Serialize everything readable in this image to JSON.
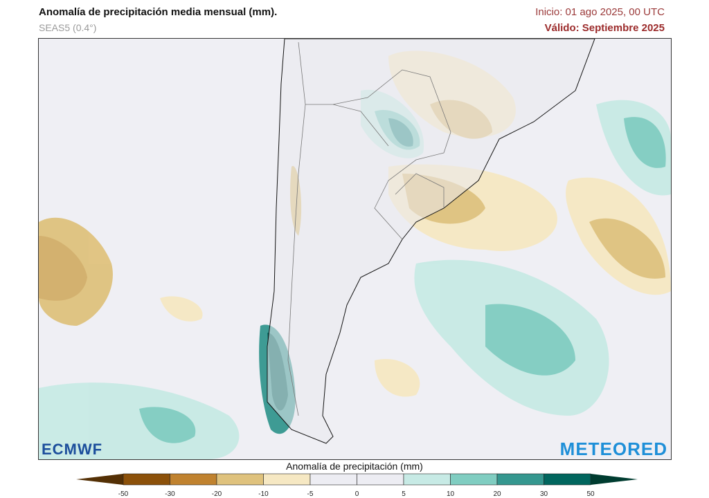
{
  "header": {
    "title": "Anomalía de precipitación media mensual (mm).",
    "model": "SEAS5 (0.4°)",
    "init": "Inicio: 01 ago 2025, 00 UTC",
    "valid": "Válido: Septiembre 2025"
  },
  "logos": {
    "left": "ECMWF",
    "right": "METEORED"
  },
  "colorbar": {
    "title": "Anomalía de precipitación (mm)",
    "ticks": [
      "-50",
      "-30",
      "-20",
      "-10",
      "-5",
      "0",
      "5",
      "10",
      "20",
      "30",
      "50"
    ],
    "under_color": "#543005",
    "over_color": "#003c30",
    "colors": [
      "#8c510a",
      "#c0822f",
      "#dfc27d",
      "#f6e8c3",
      "#ededf3",
      "#ededf3",
      "#c7eae5",
      "#80cdc1",
      "#35978f",
      "#01665e"
    ]
  }
}
